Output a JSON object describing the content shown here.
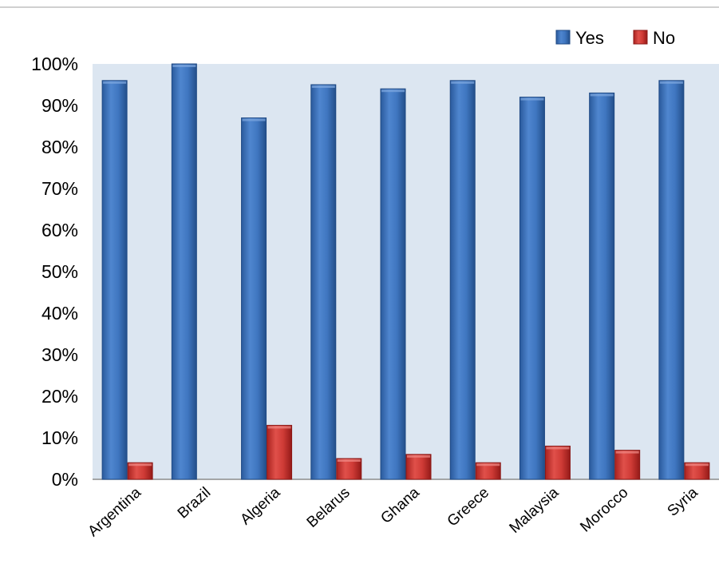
{
  "chart_data": {
    "type": "bar",
    "categories": [
      "Argentina",
      "Brazil",
      "Algeria",
      "Belarus",
      "Ghana",
      "Greece",
      "Malaysia",
      "Morocco",
      "Syria"
    ],
    "series": [
      {
        "name": "Yes",
        "values": [
          96,
          100,
          87,
          95,
          94,
          96,
          92,
          93,
          96
        ],
        "color": "#3d72b8"
      },
      {
        "name": "No",
        "values": [
          4,
          0,
          13,
          5,
          6,
          4,
          8,
          7,
          4
        ],
        "color": "#c8312e"
      }
    ],
    "yticks": [
      "0%",
      "10%",
      "20%",
      "30%",
      "40%",
      "50%",
      "60%",
      "70%",
      "80%",
      "90%",
      "100%"
    ],
    "ylim": [
      0,
      100
    ],
    "legend_position": "top-right",
    "grid": false,
    "plot_background": "#dce6f1"
  }
}
